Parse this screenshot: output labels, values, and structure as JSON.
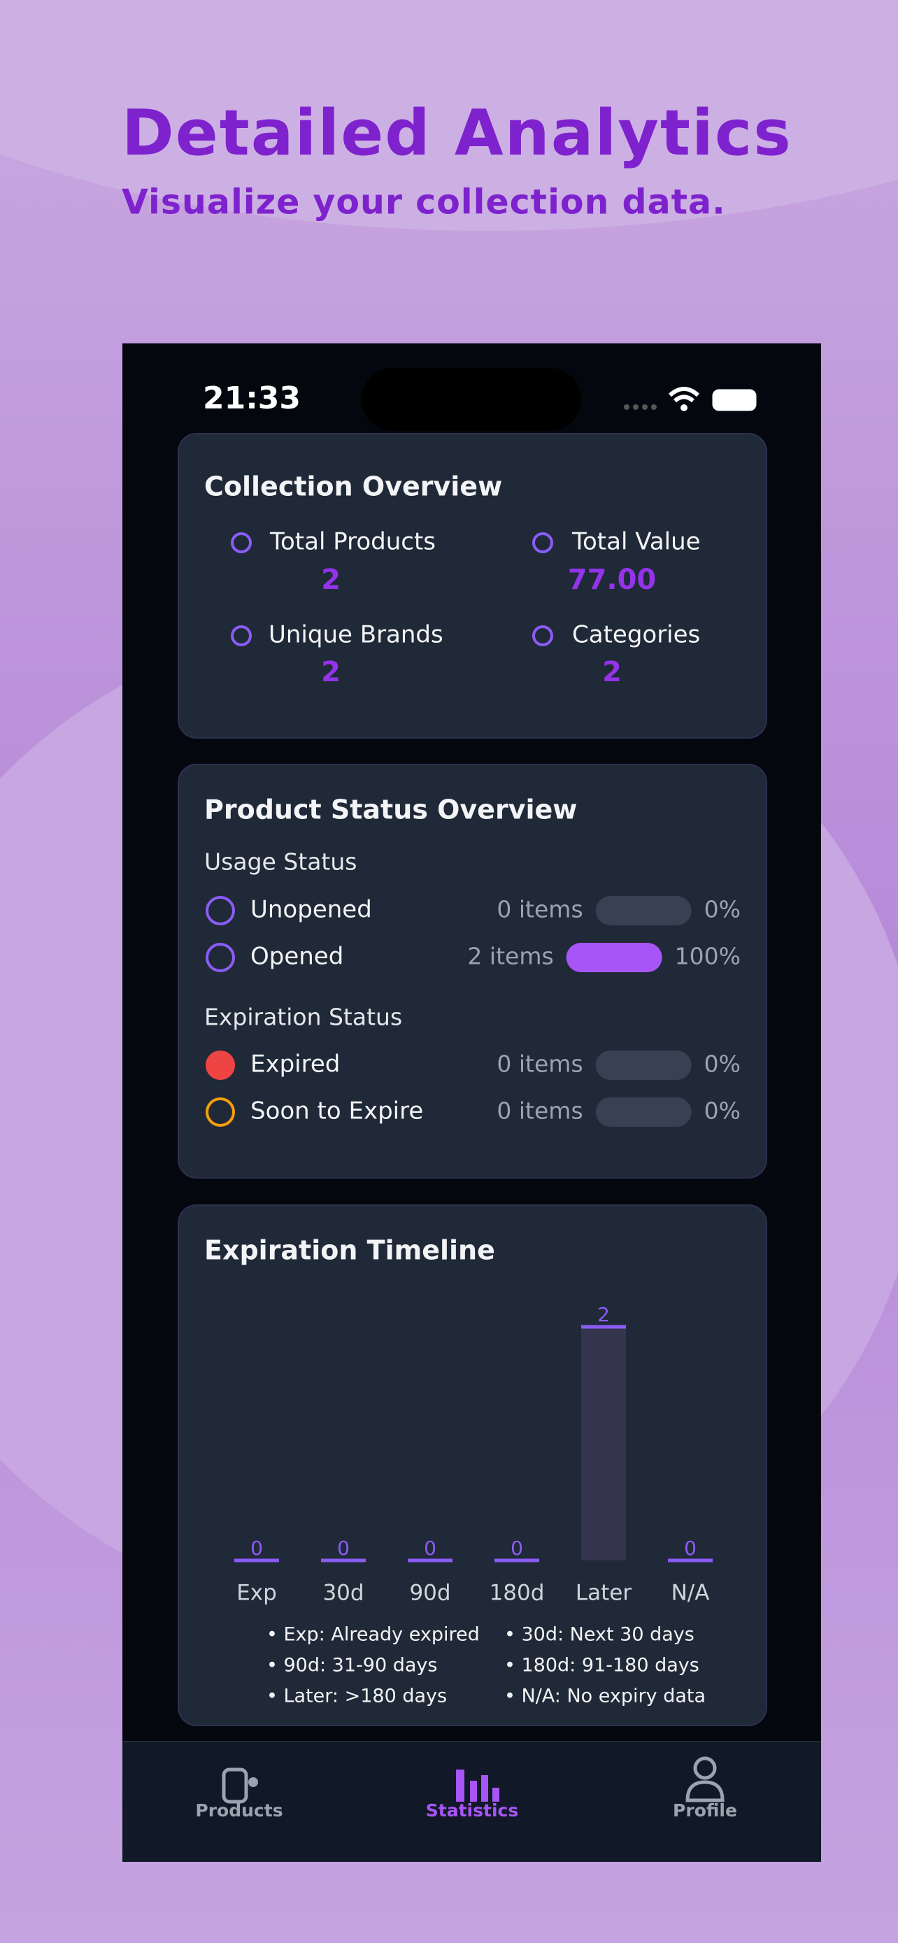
{
  "header": {
    "title": "Detailed Analytics",
    "subtitle": "Visualize your collection data."
  },
  "status_bar": {
    "time": "21:33"
  },
  "overview": {
    "title": "Collection Overview",
    "items": [
      {
        "label": "Total Products",
        "value": "2"
      },
      {
        "label": "Total Value",
        "value": "77.00"
      },
      {
        "label": "Unique Brands",
        "value": "2"
      },
      {
        "label": "Categories",
        "value": "2"
      }
    ]
  },
  "status": {
    "title": "Product Status Overview",
    "groups": [
      {
        "title": "Usage Status",
        "rows": [
          {
            "label": "Unopened",
            "count_label": "0 items",
            "percent": 0,
            "percent_label": "0%"
          },
          {
            "label": "Opened",
            "count_label": "2 items",
            "percent": 100,
            "percent_label": "100%"
          }
        ]
      },
      {
        "title": "Expiration Status",
        "rows": [
          {
            "label": "Expired",
            "count_label": "0 items",
            "percent": 0,
            "percent_label": "0%"
          },
          {
            "label": "Soon to Expire",
            "count_label": "0 items",
            "percent": 0,
            "percent_label": "0%"
          }
        ]
      }
    ]
  },
  "chart_data": {
    "type": "bar",
    "title": "Expiration Timeline",
    "categories": [
      "Exp",
      "30d",
      "90d",
      "180d",
      "Later",
      "N/A"
    ],
    "values": [
      0,
      0,
      0,
      0,
      2,
      0
    ],
    "ylim": [
      0,
      2
    ],
    "color": "#8b5cf6",
    "notes": [
      "• Exp: Already expired",
      "• 30d: Next 30 days",
      "• 90d: 31-90 days",
      "• 180d: 91-180 days",
      "• Later: >180 days",
      "• N/A: No expiry data"
    ]
  },
  "nav": {
    "items": [
      {
        "label": "Products",
        "active": false
      },
      {
        "label": "Statistics",
        "active": true
      },
      {
        "label": "Profile",
        "active": false
      }
    ]
  }
}
